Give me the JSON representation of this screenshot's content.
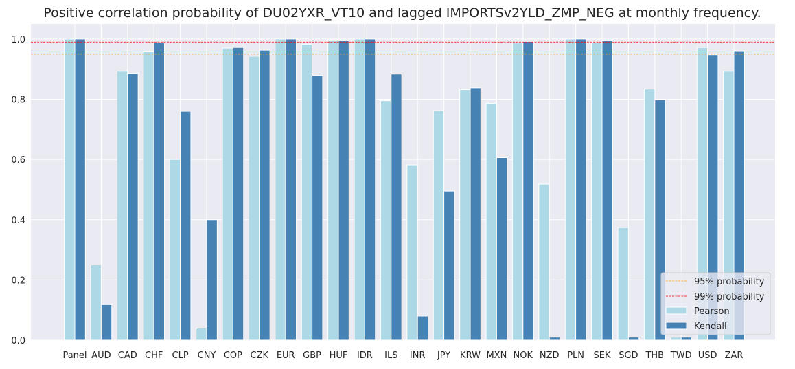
{
  "chart_data": {
    "type": "bar",
    "title": "Positive correlation probability of DU02YXR_VT10 and lagged IMPORTSv2YLD_ZMP_NEG at monthly frequency.",
    "xlabel": "",
    "ylabel": "",
    "ylim": [
      0,
      1.05
    ],
    "yticks": [
      "0.0",
      "0.2",
      "0.4",
      "0.6",
      "0.8",
      "1.0"
    ],
    "grid": true,
    "legend_placement": "lower-right",
    "categories": [
      "Panel",
      "AUD",
      "CAD",
      "CHF",
      "CLP",
      "CNY",
      "COP",
      "CZK",
      "EUR",
      "GBP",
      "HUF",
      "IDR",
      "ILS",
      "INR",
      "JPY",
      "KRW",
      "MXN",
      "NOK",
      "NZD",
      "PLN",
      "SEK",
      "SGD",
      "THB",
      "TWD",
      "USD",
      "ZAR"
    ],
    "series": [
      {
        "name": "Pearson",
        "color": "#add8e6",
        "values": [
          1.0,
          0.25,
          0.893,
          0.96,
          0.6,
          0.04,
          0.97,
          0.943,
          1.0,
          0.983,
          0.997,
          1.0,
          0.795,
          0.582,
          0.762,
          0.832,
          0.786,
          0.987,
          0.518,
          1.0,
          0.99,
          0.374,
          0.834,
          0.01,
          0.972,
          0.893
        ]
      },
      {
        "name": "Kendall",
        "color": "#4682b4",
        "values": [
          1.0,
          0.118,
          0.886,
          0.988,
          0.76,
          0.4,
          0.972,
          0.963,
          1.0,
          0.88,
          0.995,
          1.0,
          0.884,
          0.08,
          0.495,
          0.838,
          0.606,
          0.992,
          0.01,
          1.0,
          0.995,
          0.01,
          0.798,
          0.01,
          0.948,
          0.961
        ]
      }
    ],
    "reference_lines": [
      {
        "name": "95% probability",
        "value": 0.95,
        "color": "#ffa500"
      },
      {
        "name": "99% probability",
        "value": 0.99,
        "color": "#ff0000"
      }
    ]
  }
}
